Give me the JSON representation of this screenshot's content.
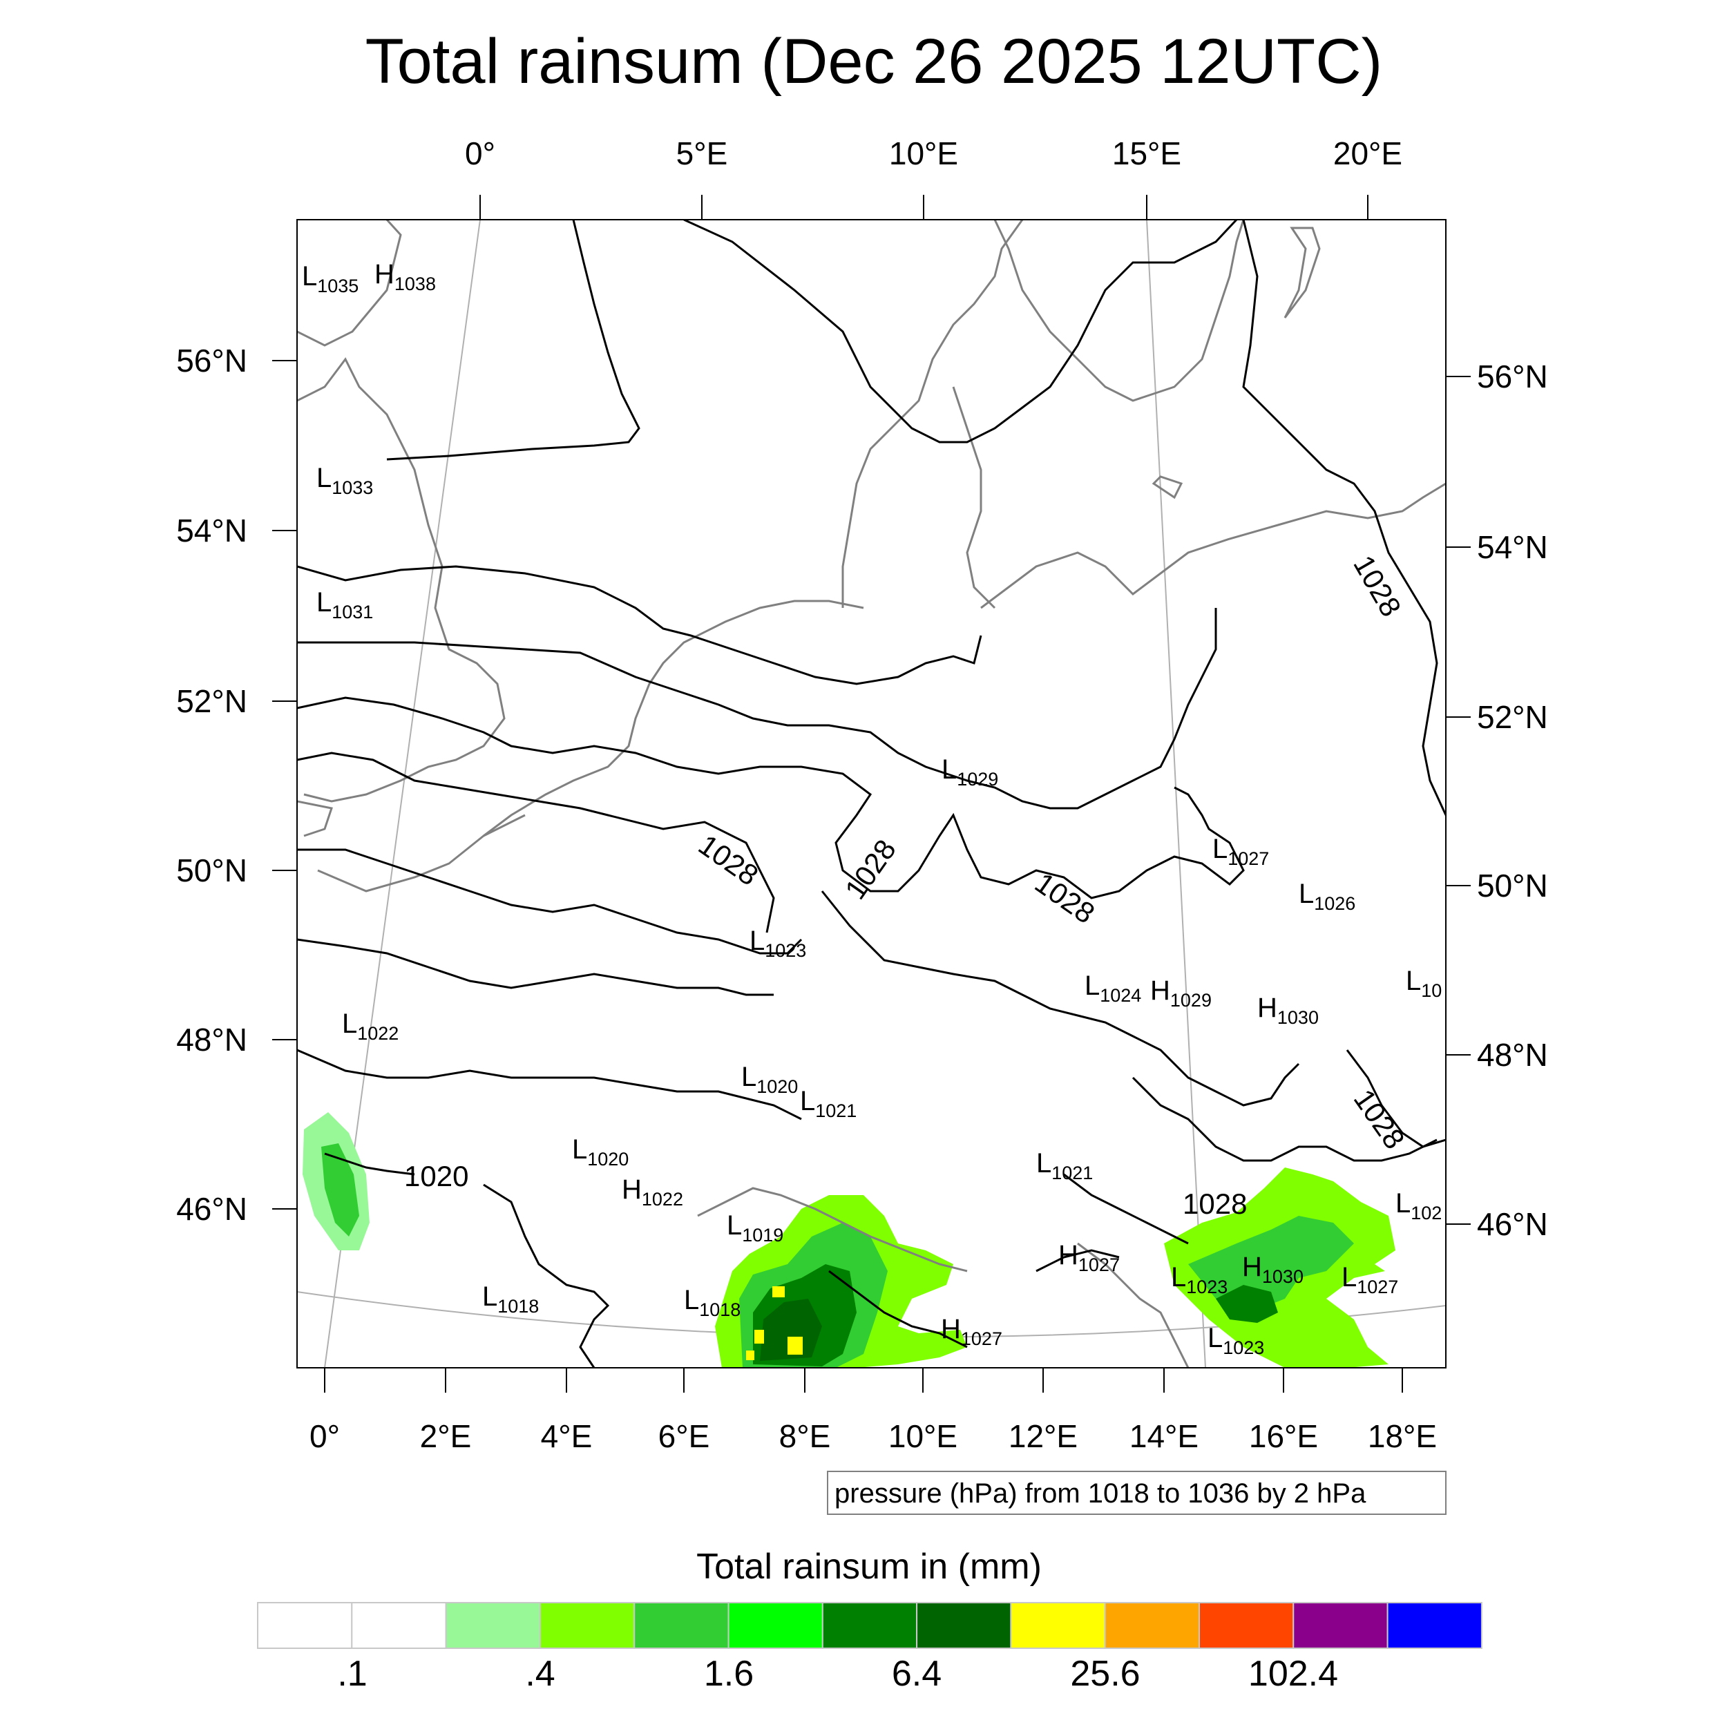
{
  "title": "Total rainsum (Dec 26 2025 12UTC)",
  "top_lon_ticks": [
    "0°",
    "5°E",
    "10°E",
    "15°E",
    "20°E"
  ],
  "bottom_lon_ticks": [
    "0°",
    "2°E",
    "4°E",
    "6°E",
    "8°E",
    "10°E",
    "12°E",
    "14°E",
    "16°E",
    "18°E"
  ],
  "left_lat_ticks": [
    "56°N",
    "54°N",
    "52°N",
    "50°N",
    "48°N",
    "46°N"
  ],
  "right_lat_ticks": [
    "56°N",
    "54°N",
    "52°N",
    "50°N",
    "48°N",
    "46°N"
  ],
  "pressure_centers": [
    {
      "type": "L",
      "value": "1035"
    },
    {
      "type": "H",
      "value": "1038"
    },
    {
      "type": "L",
      "value": "1033"
    },
    {
      "type": "L",
      "value": "1031"
    },
    {
      "type": "L",
      "value": "1029"
    },
    {
      "type": "L",
      "value": "1027"
    },
    {
      "type": "L",
      "value": "1026"
    },
    {
      "type": "L",
      "value": "1023"
    },
    {
      "type": "L",
      "value": "1024"
    },
    {
      "type": "H",
      "value": "1029"
    },
    {
      "type": "H",
      "value": "1030"
    },
    {
      "type": "L",
      "value": "10"
    },
    {
      "type": "L",
      "value": "1022"
    },
    {
      "type": "L",
      "value": "1020"
    },
    {
      "type": "L",
      "value": "1021"
    },
    {
      "type": "L",
      "value": "1020"
    },
    {
      "type": "H",
      "value": "1022"
    },
    {
      "type": "L",
      "value": "1021"
    },
    {
      "type": "L",
      "value": "102"
    },
    {
      "type": "L",
      "value": "1019"
    },
    {
      "type": "H",
      "value": "1027"
    },
    {
      "type": "L",
      "value": "1023"
    },
    {
      "type": "H",
      "value": "1030"
    },
    {
      "type": "L",
      "value": "1027"
    },
    {
      "type": "L",
      "value": "1018"
    },
    {
      "type": "L",
      "value": "1018"
    },
    {
      "type": "H",
      "value": "1027"
    },
    {
      "type": "L",
      "value": "1023"
    }
  ],
  "contour_labels": [
    "1028",
    "1028",
    "1028",
    "1028",
    "1028",
    "1020",
    "1028"
  ],
  "legend": {
    "text": "pressure (hPa) from 1018 to 1036 by 2 hPa"
  },
  "colorbar": {
    "title": "Total rainsum in (mm)",
    "labels": [
      ".1",
      ".4",
      "1.6",
      "6.4",
      "25.6",
      "102.4"
    ],
    "colors": [
      "#ffffff",
      "#ffffff",
      "#98f898",
      "#80ff00",
      "#32cd32",
      "#00ff00",
      "#008000",
      "#006400",
      "#ffff00",
      "#ffa500",
      "#ff4500",
      "#8b008b",
      "#0000ff"
    ]
  }
}
